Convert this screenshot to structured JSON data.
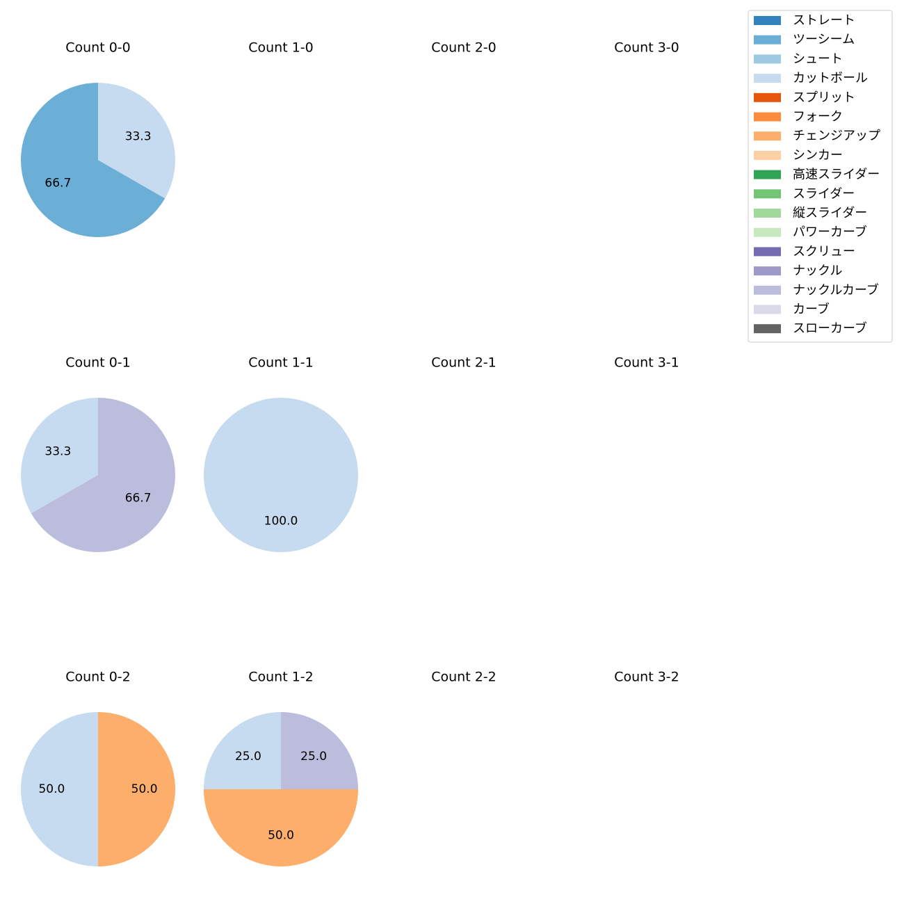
{
  "chart_data": {
    "type": "pie",
    "legend": {
      "placement": "top-right",
      "entries": [
        {
          "label": "ストレート",
          "color": "#3182bd"
        },
        {
          "label": "ツーシーム",
          "color": "#6baed6"
        },
        {
          "label": "シュート",
          "color": "#9ecae1"
        },
        {
          "label": "カットボール",
          "color": "#c6dbef"
        },
        {
          "label": "スプリット",
          "color": "#e6550d"
        },
        {
          "label": "フォーク",
          "color": "#fd8d3c"
        },
        {
          "label": "チェンジアップ",
          "color": "#fdae6b"
        },
        {
          "label": "シンカー",
          "color": "#fdd0a2"
        },
        {
          "label": "高速スライダー",
          "color": "#31a354"
        },
        {
          "label": "スライダー",
          "color": "#74c476"
        },
        {
          "label": "縦スライダー",
          "color": "#a1d99b"
        },
        {
          "label": "パワーカーブ",
          "color": "#c7e9c0"
        },
        {
          "label": "スクリュー",
          "color": "#756bb1"
        },
        {
          "label": "ナックル",
          "color": "#9e9ac8"
        },
        {
          "label": "ナックルカーブ",
          "color": "#bcbddc"
        },
        {
          "label": "カーブ",
          "color": "#dadaeb"
        },
        {
          "label": "スローカーブ",
          "color": "#636363"
        }
      ]
    },
    "panels": [
      {
        "title": "Count 0-0",
        "slices": [
          {
            "category": "ツーシーム",
            "value": 66.7,
            "color": "#6baed6",
            "label": "66.7"
          },
          {
            "category": "カットボール",
            "value": 33.3,
            "color": "#c6dbef",
            "label": "33.3"
          }
        ]
      },
      {
        "title": "Count 1-0",
        "slices": []
      },
      {
        "title": "Count 2-0",
        "slices": []
      },
      {
        "title": "Count 3-0",
        "slices": []
      },
      {
        "title": "Count 0-1",
        "slices": [
          {
            "category": "カットボール",
            "value": 33.3,
            "color": "#c6dbef",
            "label": "33.3"
          },
          {
            "category": "ナックルカーブ",
            "value": 66.7,
            "color": "#bcbddc",
            "label": "66.7"
          }
        ]
      },
      {
        "title": "Count 1-1",
        "slices": [
          {
            "category": "カットボール",
            "value": 100.0,
            "color": "#c6dbef",
            "label": "100.0"
          }
        ]
      },
      {
        "title": "Count 2-1",
        "slices": []
      },
      {
        "title": "Count 3-1",
        "slices": []
      },
      {
        "title": "Count 0-2",
        "slices": [
          {
            "category": "カットボール",
            "value": 50.0,
            "color": "#c6dbef",
            "label": "50.0"
          },
          {
            "category": "チェンジアップ",
            "value": 50.0,
            "color": "#fdae6b",
            "label": "50.0"
          }
        ]
      },
      {
        "title": "Count 1-2",
        "slices": [
          {
            "category": "カットボール",
            "value": 25.0,
            "color": "#c6dbef",
            "label": "25.0"
          },
          {
            "category": "チェンジアップ",
            "value": 50.0,
            "color": "#fdae6b",
            "label": "50.0"
          },
          {
            "category": "ナックルカーブ",
            "value": 25.0,
            "color": "#bcbddc",
            "label": "25.0"
          }
        ]
      },
      {
        "title": "Count 2-2",
        "slices": []
      },
      {
        "title": "Count 3-2",
        "slices": []
      }
    ]
  }
}
